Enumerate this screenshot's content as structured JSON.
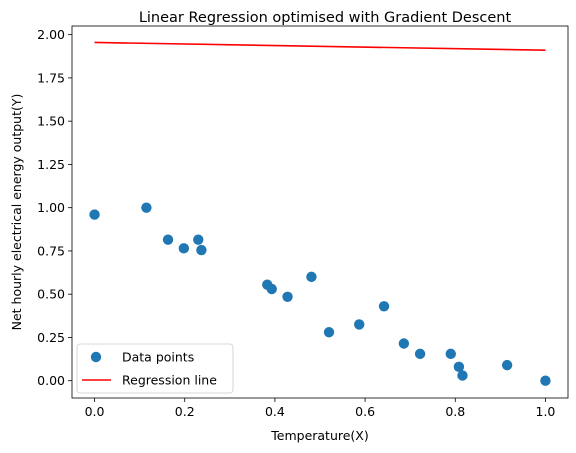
{
  "chart_data": {
    "type": "scatter",
    "title": "Linear Regression optimised with Gradient Descent",
    "xlabel": "Temperature(X)",
    "ylabel": "Net hourly electrical energy output(Y)",
    "xlim": [
      -0.05,
      1.05
    ],
    "ylim": [
      -0.1,
      2.05
    ],
    "xticks": [
      0.0,
      0.2,
      0.4,
      0.6,
      0.8,
      1.0
    ],
    "xtick_labels": [
      "0.0",
      "0.2",
      "0.4",
      "0.6",
      "0.8",
      "1.0"
    ],
    "yticks": [
      0.0,
      0.25,
      0.5,
      0.75,
      1.0,
      1.25,
      1.5,
      1.75,
      2.0
    ],
    "ytick_labels": [
      "0.00",
      "0.25",
      "0.50",
      "0.75",
      "1.00",
      "1.25",
      "1.50",
      "1.75",
      "2.00"
    ],
    "grid": false,
    "legend_position": "lower-left",
    "series": [
      {
        "name": "Data points",
        "kind": "scatter",
        "color": "#1f77b4",
        "x": [
          0.0,
          0.115,
          0.163,
          0.198,
          0.23,
          0.237,
          0.383,
          0.393,
          0.428,
          0.481,
          0.52,
          0.587,
          0.642,
          0.686,
          0.722,
          0.79,
          0.808,
          0.816,
          0.915,
          1.0
        ],
        "y": [
          0.96,
          1.0,
          0.815,
          0.765,
          0.815,
          0.755,
          0.555,
          0.53,
          0.485,
          0.6,
          0.28,
          0.325,
          0.43,
          0.215,
          0.155,
          0.155,
          0.08,
          0.03,
          0.09,
          0.0
        ]
      },
      {
        "name": "Regression line",
        "kind": "line",
        "color": "#ff0000",
        "x": [
          0.0,
          1.0
        ],
        "y": [
          1.955,
          1.91
        ]
      }
    ]
  }
}
